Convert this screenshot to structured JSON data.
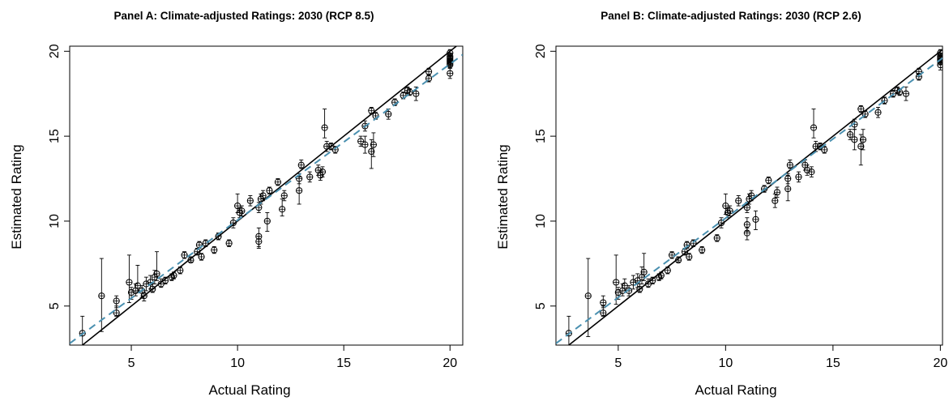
{
  "chart_data": [
    {
      "type": "scatter",
      "title": "Panel A: Climate-adjusted Ratings: 2030 (RCP 8.5)",
      "xlabel": "Actual Rating",
      "ylabel": "Estimated Rating",
      "xlim": [
        2.1,
        20.6
      ],
      "ylim": [
        2.7,
        20.3
      ],
      "xticks": [
        5,
        10,
        15,
        20
      ],
      "yticks": [
        5,
        10,
        15,
        20
      ],
      "grid": false,
      "series": [
        {
          "marker": "open-circle-with-cross",
          "points": [
            [
              2.7,
              3.4,
              2.7,
              4.4
            ],
            [
              3.6,
              5.6,
              3.5,
              7.8
            ],
            [
              4.3,
              5.3,
              4.9,
              5.6
            ],
            [
              4.3,
              4.6,
              4.4,
              5.0
            ],
            [
              4.9,
              6.4,
              5.2,
              8.0
            ],
            [
              5.0,
              5.8,
              5.4,
              6.1
            ],
            [
              5.2,
              5.9,
              5.6,
              6.3
            ],
            [
              5.3,
              6.2,
              5.8,
              7.4
            ],
            [
              5.5,
              5.9,
              5.5,
              6.2
            ],
            [
              5.6,
              5.6,
              5.3,
              5.8
            ],
            [
              5.7,
              6.3,
              5.9,
              6.7
            ],
            [
              5.9,
              6.4,
              6.0,
              6.8
            ],
            [
              6.0,
              6.0,
              5.8,
              6.3
            ],
            [
              6.1,
              6.7,
              6.3,
              7.1
            ],
            [
              6.2,
              6.9,
              6.5,
              8.2
            ],
            [
              6.4,
              6.3,
              6.1,
              6.6
            ],
            [
              6.6,
              6.5,
              6.3,
              6.7
            ],
            [
              6.9,
              6.7,
              6.5,
              6.9
            ],
            [
              7.0,
              6.8,
              6.6,
              7.0
            ],
            [
              7.3,
              7.1,
              6.9,
              7.3
            ],
            [
              7.5,
              8.0,
              7.8,
              8.2
            ],
            [
              7.8,
              7.7,
              7.6,
              7.9
            ],
            [
              8.1,
              8.2,
              8.0,
              8.4
            ],
            [
              8.2,
              8.6,
              8.4,
              8.8
            ],
            [
              8.3,
              7.9,
              7.7,
              8.1
            ],
            [
              8.5,
              8.7,
              8.5,
              8.9
            ],
            [
              8.9,
              8.3,
              8.1,
              8.5
            ],
            [
              9.1,
              9.1,
              8.9,
              9.3
            ],
            [
              9.6,
              8.7,
              8.5,
              8.9
            ],
            [
              9.8,
              9.9,
              9.6,
              10.2
            ],
            [
              10.0,
              10.9,
              10.5,
              11.6
            ],
            [
              10.1,
              10.5,
              10.2,
              10.8
            ],
            [
              10.2,
              10.6,
              10.3,
              10.9
            ],
            [
              10.6,
              11.2,
              10.9,
              11.5
            ],
            [
              11.0,
              9.1,
              8.4,
              9.6
            ],
            [
              11.0,
              8.8,
              8.5,
              9.1
            ],
            [
              11.0,
              10.8,
              10.5,
              11.1
            ],
            [
              11.1,
              11.3,
              11.0,
              11.6
            ],
            [
              11.2,
              11.5,
              11.2,
              11.8
            ],
            [
              11.4,
              10.0,
              9.4,
              10.5
            ],
            [
              11.5,
              11.8,
              11.6,
              12.0
            ],
            [
              11.9,
              12.3,
              12.1,
              12.5
            ],
            [
              12.1,
              10.7,
              10.3,
              11.3
            ],
            [
              12.2,
              11.5,
              11.2,
              11.8
            ],
            [
              12.9,
              11.8,
              11.0,
              12.6
            ],
            [
              12.9,
              12.5,
              12.2,
              12.8
            ],
            [
              13.0,
              13.3,
              13.1,
              13.6
            ],
            [
              13.4,
              12.6,
              12.3,
              12.9
            ],
            [
              13.8,
              13.0,
              12.7,
              13.3
            ],
            [
              13.9,
              12.7,
              12.4,
              13.0
            ],
            [
              14.0,
              12.9,
              12.6,
              13.2
            ],
            [
              14.1,
              15.5,
              14.9,
              16.6
            ],
            [
              14.2,
              14.4,
              14.1,
              14.7
            ],
            [
              14.4,
              14.4,
              14.2,
              14.6
            ],
            [
              14.6,
              14.2,
              14.0,
              14.4
            ],
            [
              15.8,
              14.7,
              14.4,
              15.0
            ],
            [
              16.0,
              15.6,
              15.3,
              15.9
            ],
            [
              16.0,
              14.5,
              14.0,
              15.0
            ],
            [
              16.3,
              16.5,
              16.3,
              16.7
            ],
            [
              16.3,
              14.1,
              13.1,
              14.8
            ],
            [
              16.4,
              14.5,
              13.8,
              15.2
            ],
            [
              16.5,
              16.2,
              16.0,
              16.4
            ],
            [
              17.1,
              16.3,
              16.0,
              16.6
            ],
            [
              17.4,
              17.0,
              16.8,
              17.2
            ],
            [
              17.8,
              17.4,
              17.2,
              17.6
            ],
            [
              18.0,
              17.7,
              17.5,
              17.9
            ],
            [
              18.1,
              17.6,
              17.4,
              17.8
            ],
            [
              18.4,
              17.5,
              17.1,
              17.9
            ],
            [
              19.0,
              18.8,
              18.6,
              19.0
            ],
            [
              19.0,
              18.4,
              18.2,
              18.6
            ],
            [
              20.0,
              19.4,
              19.2,
              19.6
            ],
            [
              20.0,
              19.6,
              19.4,
              19.8
            ],
            [
              20.0,
              19.7,
              19.5,
              19.9
            ],
            [
              20.0,
              19.2,
              19.0,
              19.4
            ],
            [
              20.0,
              18.7,
              18.4,
              19.0
            ],
            [
              20.0,
              19.9,
              19.7,
              20.1
            ],
            [
              20.0,
              19.5,
              19.3,
              19.7
            ],
            [
              20.0,
              19.3,
              19.1,
              19.5
            ]
          ]
        }
      ],
      "lines": [
        {
          "style": "solid",
          "color": "#000000",
          "points": [
            [
              2.1,
              2.1
            ],
            [
              20.6,
              20.6
            ]
          ]
        },
        {
          "style": "dashed",
          "color": "#4a90b0",
          "points": [
            [
              2.1,
              2.8
            ],
            [
              20.6,
              19.8
            ]
          ]
        }
      ]
    },
    {
      "type": "scatter",
      "title": "Panel B: Climate-adjusted Ratings: 2030 (RCP 2.6)",
      "xlabel": "Actual Rating",
      "ylabel": "Estimated Rating",
      "xlim": [
        2.1,
        20.1
      ],
      "ylim": [
        2.7,
        20.3
      ],
      "xticks": [
        5,
        10,
        15,
        20
      ],
      "yticks": [
        5,
        10,
        15,
        20
      ],
      "grid": false,
      "series": [
        {
          "marker": "open-circle-with-cross",
          "points": [
            [
              2.7,
              3.4,
              2.7,
              4.4
            ],
            [
              3.6,
              5.6,
              3.2,
              7.8
            ],
            [
              4.3,
              5.2,
              4.9,
              5.6
            ],
            [
              4.3,
              4.6,
              4.4,
              5.0
            ],
            [
              4.9,
              6.4,
              5.1,
              8.0
            ],
            [
              5.0,
              5.8,
              5.4,
              6.1
            ],
            [
              5.2,
              5.9,
              5.6,
              6.3
            ],
            [
              5.3,
              6.2,
              5.9,
              6.6
            ],
            [
              5.5,
              5.9,
              5.6,
              6.2
            ],
            [
              5.7,
              6.4,
              6.0,
              6.8
            ],
            [
              5.9,
              6.5,
              6.1,
              6.9
            ],
            [
              6.0,
              6.0,
              5.8,
              6.3
            ],
            [
              6.1,
              6.7,
              6.3,
              7.3
            ],
            [
              6.2,
              7.0,
              6.5,
              8.1
            ],
            [
              6.4,
              6.3,
              6.1,
              6.6
            ],
            [
              6.6,
              6.5,
              6.3,
              6.7
            ],
            [
              6.9,
              6.7,
              6.5,
              6.9
            ],
            [
              7.0,
              6.8,
              6.6,
              7.0
            ],
            [
              7.3,
              7.1,
              6.9,
              7.3
            ],
            [
              7.5,
              8.0,
              7.8,
              8.2
            ],
            [
              7.8,
              7.7,
              7.6,
              7.9
            ],
            [
              8.1,
              8.2,
              8.0,
              8.4
            ],
            [
              8.2,
              8.6,
              8.4,
              8.8
            ],
            [
              8.3,
              7.9,
              7.7,
              8.1
            ],
            [
              8.5,
              8.7,
              8.5,
              8.9
            ],
            [
              8.9,
              8.3,
              8.1,
              8.5
            ],
            [
              9.6,
              9.0,
              8.8,
              9.2
            ],
            [
              9.8,
              9.9,
              9.6,
              10.2
            ],
            [
              10.0,
              10.9,
              10.4,
              11.6
            ],
            [
              10.1,
              10.5,
              10.2,
              10.8
            ],
            [
              10.2,
              10.6,
              10.3,
              10.9
            ],
            [
              10.6,
              11.2,
              10.9,
              11.5
            ],
            [
              11.0,
              9.3,
              8.9,
              9.6
            ],
            [
              11.0,
              9.8,
              9.4,
              10.2
            ],
            [
              11.0,
              10.8,
              10.5,
              11.1
            ],
            [
              11.1,
              11.3,
              11.0,
              11.6
            ],
            [
              11.2,
              11.5,
              11.2,
              11.8
            ],
            [
              11.4,
              10.1,
              9.5,
              10.6
            ],
            [
              11.8,
              11.9,
              11.7,
              12.1
            ],
            [
              12.0,
              12.4,
              12.2,
              12.6
            ],
            [
              12.3,
              11.2,
              10.8,
              11.6
            ],
            [
              12.4,
              11.7,
              11.4,
              12.0
            ],
            [
              12.9,
              11.9,
              11.2,
              12.7
            ],
            [
              12.9,
              12.5,
              12.2,
              12.8
            ],
            [
              13.0,
              13.3,
              13.1,
              13.6
            ],
            [
              13.4,
              12.6,
              12.3,
              12.9
            ],
            [
              13.7,
              13.3,
              13.0,
              13.6
            ],
            [
              13.8,
              13.0,
              12.7,
              13.3
            ],
            [
              14.0,
              12.9,
              12.6,
              13.2
            ],
            [
              14.1,
              15.5,
              14.9,
              16.6
            ],
            [
              14.2,
              14.4,
              14.1,
              14.7
            ],
            [
              14.4,
              14.4,
              14.2,
              14.6
            ],
            [
              14.6,
              14.2,
              14.0,
              14.4
            ],
            [
              15.8,
              15.1,
              14.8,
              15.4
            ],
            [
              16.0,
              15.7,
              15.4,
              16.0
            ],
            [
              16.0,
              14.8,
              14.2,
              15.4
            ],
            [
              16.3,
              16.6,
              16.4,
              16.8
            ],
            [
              16.3,
              14.4,
              13.3,
              15.1
            ],
            [
              16.4,
              14.8,
              14.2,
              15.4
            ],
            [
              16.5,
              16.3,
              16.1,
              16.5
            ],
            [
              17.1,
              16.4,
              16.1,
              16.7
            ],
            [
              17.4,
              17.1,
              16.9,
              17.3
            ],
            [
              17.8,
              17.5,
              17.3,
              17.7
            ],
            [
              18.0,
              17.7,
              17.5,
              17.9
            ],
            [
              18.1,
              17.6,
              17.4,
              17.8
            ],
            [
              18.4,
              17.5,
              17.1,
              17.9
            ],
            [
              19.0,
              18.8,
              18.6,
              19.0
            ],
            [
              19.0,
              18.5,
              18.3,
              18.7
            ],
            [
              20.0,
              19.4,
              19.2,
              19.6
            ],
            [
              20.0,
              19.6,
              19.4,
              19.8
            ],
            [
              20.0,
              19.7,
              19.5,
              19.9
            ],
            [
              20.0,
              19.2,
              18.9,
              19.5
            ],
            [
              20.0,
              19.9,
              19.7,
              20.1
            ],
            [
              20.0,
              19.5,
              19.3,
              19.7
            ]
          ]
        }
      ],
      "lines": [
        {
          "style": "solid",
          "color": "#000000",
          "points": [
            [
              2.1,
              2.1
            ],
            [
              20.1,
              20.1
            ]
          ]
        },
        {
          "style": "dashed",
          "color": "#4a90b0",
          "points": [
            [
              2.1,
              2.8
            ],
            [
              20.1,
              19.6
            ]
          ]
        }
      ]
    }
  ]
}
